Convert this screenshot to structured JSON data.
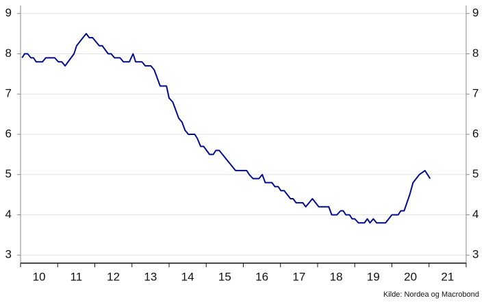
{
  "chart_data": {
    "type": "line",
    "source": "Kilde: Nordea og Macrobond",
    "xlim": [
      2010,
      2022
    ],
    "xticks": [
      {
        "value": 2010.5,
        "label": "10"
      },
      {
        "value": 2011.5,
        "label": "11"
      },
      {
        "value": 2012.5,
        "label": "12"
      },
      {
        "value": 2013.5,
        "label": "13"
      },
      {
        "value": 2014.5,
        "label": "14"
      },
      {
        "value": 2015.5,
        "label": "15"
      },
      {
        "value": 2016.5,
        "label": "16"
      },
      {
        "value": 2017.5,
        "label": "17"
      },
      {
        "value": 2018.5,
        "label": "18"
      },
      {
        "value": 2019.5,
        "label": "19"
      },
      {
        "value": 2020.5,
        "label": "20"
      },
      {
        "value": 2021.5,
        "label": "21"
      }
    ],
    "ylim": [
      2.8,
      9.2
    ],
    "yticks": [
      3,
      4,
      5,
      6,
      7,
      8,
      9
    ],
    "grid": true,
    "x": [
      2010.04,
      2010.11,
      2010.19,
      2010.28,
      2010.35,
      2010.42,
      2010.59,
      2010.68,
      2010.92,
      2011.02,
      2011.11,
      2011.2,
      2011.44,
      2011.51,
      2011.68,
      2011.77,
      2011.85,
      2011.94,
      2012.12,
      2012.2,
      2012.36,
      2012.44,
      2012.53,
      2012.68,
      2012.77,
      2012.93,
      2013.03,
      2013.1,
      2013.27,
      2013.36,
      2013.51,
      2013.6,
      2013.76,
      2013.93,
      2014.0,
      2014.1,
      2014.26,
      2014.35,
      2014.43,
      2014.52,
      2014.69,
      2014.76,
      2014.85,
      2014.93,
      2015.09,
      2015.19,
      2015.26,
      2015.35,
      2015.79,
      2016.09,
      2016.16,
      2016.26,
      2016.42,
      2016.51,
      2016.59,
      2016.77,
      2016.85,
      2016.94,
      2017.01,
      2017.1,
      2017.27,
      2017.34,
      2017.42,
      2017.6,
      2017.68,
      2017.86,
      2018.03,
      2018.3,
      2018.38,
      2018.52,
      2018.62,
      2018.69,
      2018.76,
      2018.86,
      2018.93,
      2019.0,
      2019.1,
      2019.26,
      2019.34,
      2019.41,
      2019.5,
      2019.59,
      2019.83,
      2020.0,
      2020.17,
      2020.24,
      2020.33,
      2020.48,
      2020.57,
      2020.74,
      2020.89,
      2021.03
    ],
    "series": [
      {
        "color": "#000c8c",
        "values": [
          7.9,
          8.0,
          8.0,
          7.9,
          7.9,
          7.8,
          7.8,
          7.9,
          7.9,
          7.8,
          7.8,
          7.7,
          8.0,
          8.2,
          8.4,
          8.5,
          8.4,
          8.4,
          8.2,
          8.2,
          8.0,
          8.0,
          7.9,
          7.9,
          7.8,
          7.8,
          8.0,
          7.8,
          7.8,
          7.7,
          7.7,
          7.6,
          7.2,
          7.2,
          6.9,
          6.8,
          6.4,
          6.3,
          6.1,
          6.0,
          6.0,
          5.9,
          5.7,
          5.7,
          5.5,
          5.5,
          5.6,
          5.6,
          5.1,
          5.1,
          5.0,
          4.9,
          4.9,
          5.0,
          4.8,
          4.8,
          4.7,
          4.7,
          4.6,
          4.6,
          4.4,
          4.4,
          4.3,
          4.3,
          4.2,
          4.4,
          4.2,
          4.2,
          4.0,
          4.0,
          4.1,
          4.1,
          4.0,
          4.0,
          3.9,
          3.9,
          3.8,
          3.8,
          3.9,
          3.8,
          3.9,
          3.8,
          3.8,
          4.0,
          4.0,
          4.1,
          4.1,
          4.5,
          4.8,
          5.0,
          5.1,
          4.9
        ]
      }
    ]
  }
}
